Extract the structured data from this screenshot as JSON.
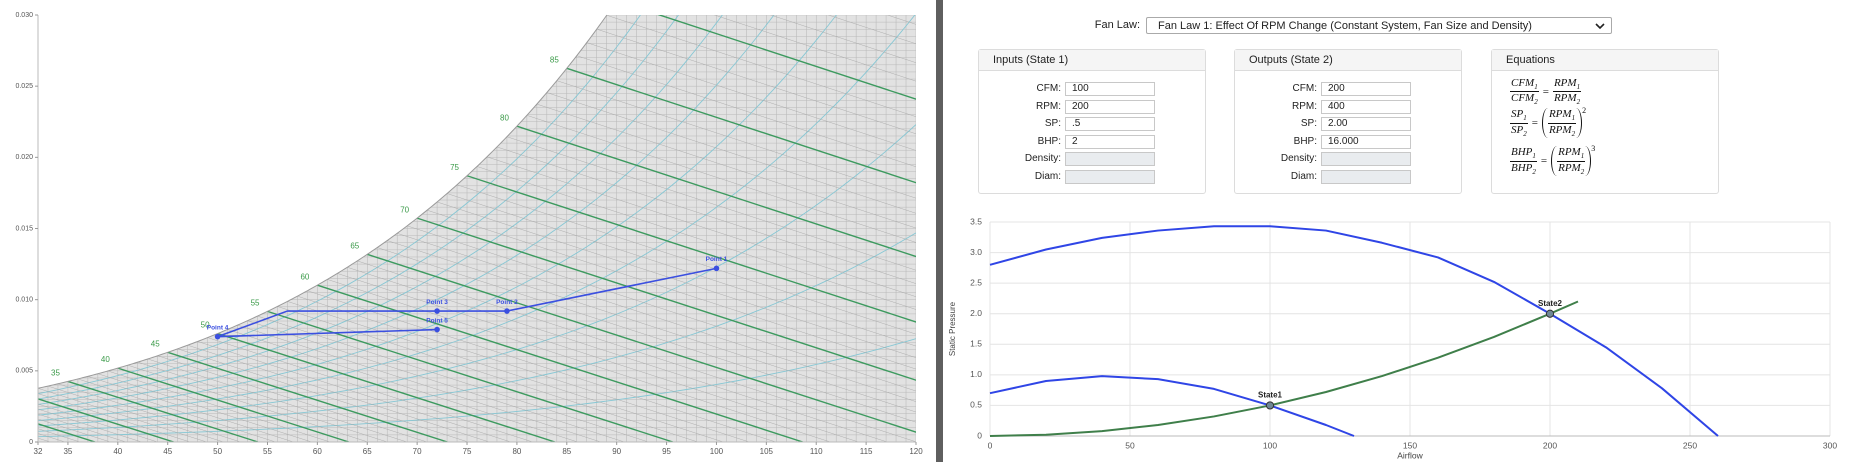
{
  "chart_data": [
    {
      "type": "psychrometric",
      "xlim": [
        32,
        120
      ],
      "xticks": [
        32,
        35,
        40,
        45,
        50,
        55,
        60,
        65,
        70,
        75,
        80,
        85,
        90,
        95,
        100,
        105,
        110,
        115,
        120
      ],
      "ylim": [
        0,
        0.03
      ],
      "yticks": [
        0,
        {
          "value": 0.005,
          "label": "0.005"
        },
        {
          "value": 0.01,
          "label": "0.010"
        },
        0.015,
        {
          "value": 0.02,
          "label": "0.020"
        },
        0.025,
        {
          "value": 0.03,
          "label": "0.030"
        }
      ],
      "wetbulb_labels": [
        35,
        40,
        45,
        50,
        55,
        60,
        65,
        70,
        75,
        80,
        85
      ],
      "wetbulb_color": "#3d9a5f",
      "color": "#3b4fe0",
      "grid": true,
      "points": {
        "names": [
          "Point 1",
          "Point 2",
          "Point 3",
          "Point 5",
          "Point 4"
        ],
        "x": [
          100,
          79,
          72,
          72,
          50
        ],
        "y": [
          0.0122,
          0.0092,
          0.0092,
          0.0079,
          0.0074
        ]
      },
      "process_lines": [
        {
          "x": [
            50,
            57,
            79,
            100
          ],
          "y": [
            0.0074,
            0.0092,
            0.0092,
            0.0122
          ]
        },
        {
          "x": [
            50,
            72
          ],
          "y": [
            0.0074,
            0.0079
          ]
        }
      ]
    },
    {
      "type": "line",
      "x_label": "Airflow",
      "y_label": "Static Pressure",
      "xlim": [
        0,
        300
      ],
      "xticks": [
        0,
        50,
        100,
        150,
        200,
        250,
        300
      ],
      "ylim": [
        0,
        3.5
      ],
      "yticks": [
        0,
        0.5,
        {
          "value": 1,
          "label": "1.0"
        },
        1.5,
        {
          "value": 2,
          "label": "2.0"
        },
        2.5,
        {
          "value": 3,
          "label": "3.0"
        },
        3.5
      ],
      "grid": true,
      "series": [
        {
          "color": "#2f45e6",
          "x": [
            0,
            20,
            40,
            60,
            80,
            100,
            120,
            140,
            160,
            180,
            200,
            220,
            240,
            260
          ],
          "values": [
            2.8,
            3.05,
            3.24,
            3.36,
            3.43,
            3.43,
            3.36,
            3.16,
            2.92,
            2.52,
            2.0,
            1.45,
            0.78,
            0
          ]
        },
        {
          "color": "#2f45e6",
          "x": [
            0,
            20,
            40,
            60,
            80,
            100,
            120,
            130
          ],
          "values": [
            0.7,
            0.9,
            0.98,
            0.93,
            0.77,
            0.5,
            0.18,
            0
          ]
        },
        {
          "color": "#3f7f4a",
          "x": [
            0,
            20,
            40,
            60,
            80,
            100,
            120,
            140,
            160,
            180,
            200,
            210
          ],
          "values": [
            0,
            0.02,
            0.08,
            0.18,
            0.32,
            0.5,
            0.72,
            0.98,
            1.28,
            1.62,
            2.0,
            2.2
          ]
        }
      ],
      "points": {
        "names": [
          "State1",
          "State2"
        ],
        "x": [
          100,
          200
        ],
        "values": [
          0.5,
          2.0
        ],
        "color": "#6f8796"
      }
    }
  ],
  "form": {
    "fan_law_label": "Fan Law:",
    "fan_law": "Fan Law 1: Effect Of RPM Change (Constant System, Fan Size and Density)",
    "panels": [
      {
        "title": "Inputs (State 1)",
        "fields": [
          {
            "label": "CFM:",
            "value": "100"
          },
          {
            "label": "RPM:",
            "value": "200"
          },
          {
            "label": "SP:",
            "value": ".5"
          },
          {
            "label": "BHP:",
            "value": "2"
          },
          {
            "label": "Density:"
          },
          {
            "label": "Diam:"
          }
        ]
      },
      {
        "title": "Outputs (State 2)",
        "fields": [
          {
            "label": "CFM:",
            "value": "200"
          },
          {
            "label": "RPM:",
            "value": "400"
          },
          {
            "label": "SP:",
            "value": "2.00"
          },
          {
            "label": "BHP:",
            "value": "16.000"
          },
          {
            "label": "Density:"
          },
          {
            "label": "Diam:"
          }
        ]
      }
    ],
    "equations": {
      "title": "Equations",
      "subscripts": [
        "1",
        "2"
      ],
      "relation": "=",
      "rows": [
        {
          "left": "CFM",
          "right": "RPM"
        },
        {
          "left": "SP",
          "right": "RPM",
          "power": "2"
        },
        {
          "left": "BHP",
          "right": "RPM",
          "power": "3"
        }
      ]
    }
  }
}
